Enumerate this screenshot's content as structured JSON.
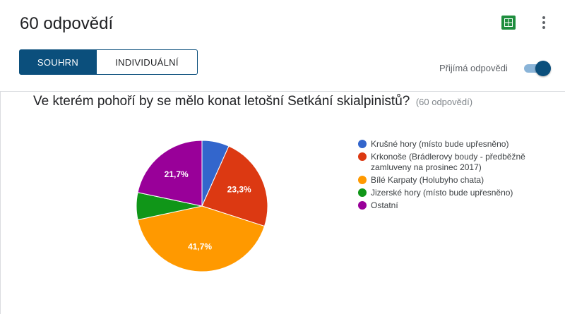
{
  "header": {
    "title": "60 odpovědí",
    "sheets_icon": "google-sheets-icon",
    "more_icon": "more-vert-icon"
  },
  "tabs": [
    {
      "label": "SOUHRN",
      "active": true
    },
    {
      "label": "INDIVIDUÁLNÍ",
      "active": false
    }
  ],
  "accepting": {
    "label": "Přijímá odpovědi",
    "on": true
  },
  "question": {
    "text": "Ve kterém pohoří by se mělo konat letošní Setkání skialpinistů?",
    "count": "(60 odpovědí)"
  },
  "colors": {
    "accent": "#0b4f7c"
  },
  "chart_data": {
    "type": "pie",
    "title": "Ve kterém pohoří by se mělo konat letošní Setkání skialpinistů?",
    "start_angle_deg": 90,
    "slices": [
      {
        "label": "Krušné hory (místo bude upřesněno)",
        "value": 6.7,
        "display": "",
        "color": "#3366cc"
      },
      {
        "label": "Krkonoše (Brádlerovy boudy - předběžně zamluveny na prosinec 2017)",
        "value": 23.3,
        "display": "23,3%",
        "color": "#dc3912"
      },
      {
        "label": "Bílé Karpaty (Holubyho chata)",
        "value": 41.7,
        "display": "41,7%",
        "color": "#ff9900"
      },
      {
        "label": "Jizerské hory (místo bude upřesněno)",
        "value": 6.7,
        "display": "",
        "color": "#109618"
      },
      {
        "label": "Ostatní",
        "value": 21.7,
        "display": "21,7%",
        "color": "#990099"
      }
    ]
  }
}
